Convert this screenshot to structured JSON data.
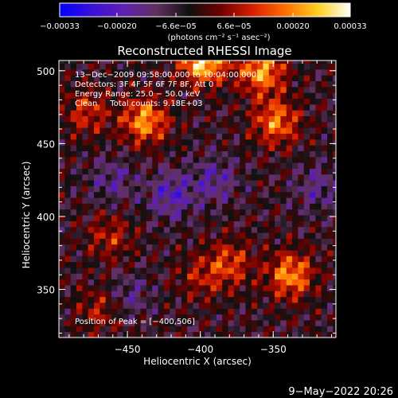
{
  "chart_data": {
    "type": "heatmap",
    "title": "Reconstructed RHESSI Image",
    "xlabel": "Heliocentric X (arcsec)",
    "ylabel": "Heliocentric Y (arcsec)",
    "xlim": [
      -497,
      -307
    ],
    "ylim": [
      317,
      507
    ],
    "x_ticks": [
      {
        "value": -450,
        "label": "−450"
      },
      {
        "value": -400,
        "label": "−400"
      },
      {
        "value": -350,
        "label": "−350"
      }
    ],
    "y_ticks": [
      {
        "value": 500,
        "label": "500"
      },
      {
        "value": 450,
        "label": "450"
      },
      {
        "value": 400,
        "label": "400"
      },
      {
        "value": 350,
        "label": "350"
      }
    ],
    "colorbar": {
      "range": [
        -0.00033,
        0.00033
      ],
      "units": "(photons cm⁻² s⁻¹ asec⁻²)",
      "colors": [
        "#0000ff",
        "#3a10d8",
        "#6020b0",
        "#603060",
        "#101010",
        "#700000",
        "#d82000",
        "#ff7000",
        "#ffd020",
        "#ffffff"
      ],
      "ticks": [
        {
          "value": -0.00033,
          "label": "−0.00033"
        },
        {
          "value": -0.0002,
          "label": "−0.00020"
        },
        {
          "value": -6.6e-05,
          "label": "−6.6e−05"
        },
        {
          "value": 6.6e-05,
          "label": "6.6e−05"
        },
        {
          "value": 0.0002,
          "label": "0.00020"
        },
        {
          "value": 0.00033,
          "label": "0.00033"
        }
      ]
    },
    "annotations": [
      "13−Dec−2009 09:58:00.000 to 10:04:00.000",
      "Detectors: 3F 4F 5F 6F 7F 8F, Att 0",
      "Energy Range: 25.0 − 50.0 keV",
      "Clean     Total counts: 9.18E+03"
    ],
    "peak_label": "Position of Peak = [−400,506]",
    "peak": {
      "x": -400,
      "y": 506
    },
    "bright_regions": [
      {
        "x": -398,
        "y": 507,
        "value": 0.00033
      },
      {
        "x": -358,
        "y": 500,
        "value": 0.00026
      },
      {
        "x": -438,
        "y": 466,
        "value": 0.00025
      },
      {
        "x": -348,
        "y": 465,
        "value": 0.00022
      },
      {
        "x": -338,
        "y": 360,
        "value": 0.00024
      },
      {
        "x": -380,
        "y": 368,
        "value": 0.00016
      },
      {
        "x": -478,
        "y": 472,
        "value": 0.00014
      },
      {
        "x": -462,
        "y": 386,
        "value": 0.00012
      },
      {
        "x": -468,
        "y": 337,
        "value": 0.00012
      },
      {
        "x": -400,
        "y": 358,
        "value": 0.0001
      }
    ],
    "dark_regions": [
      {
        "x": -420,
        "y": 415,
        "value": -0.00015
      },
      {
        "x": -390,
        "y": 425,
        "value": -0.00012
      },
      {
        "x": -460,
        "y": 425,
        "value": -0.0001
      },
      {
        "x": -450,
        "y": 345,
        "value": -0.0001
      },
      {
        "x": -320,
        "y": 420,
        "value": -0.0001
      }
    ]
  },
  "footer": {
    "date": "9−May−2022 20:26"
  }
}
